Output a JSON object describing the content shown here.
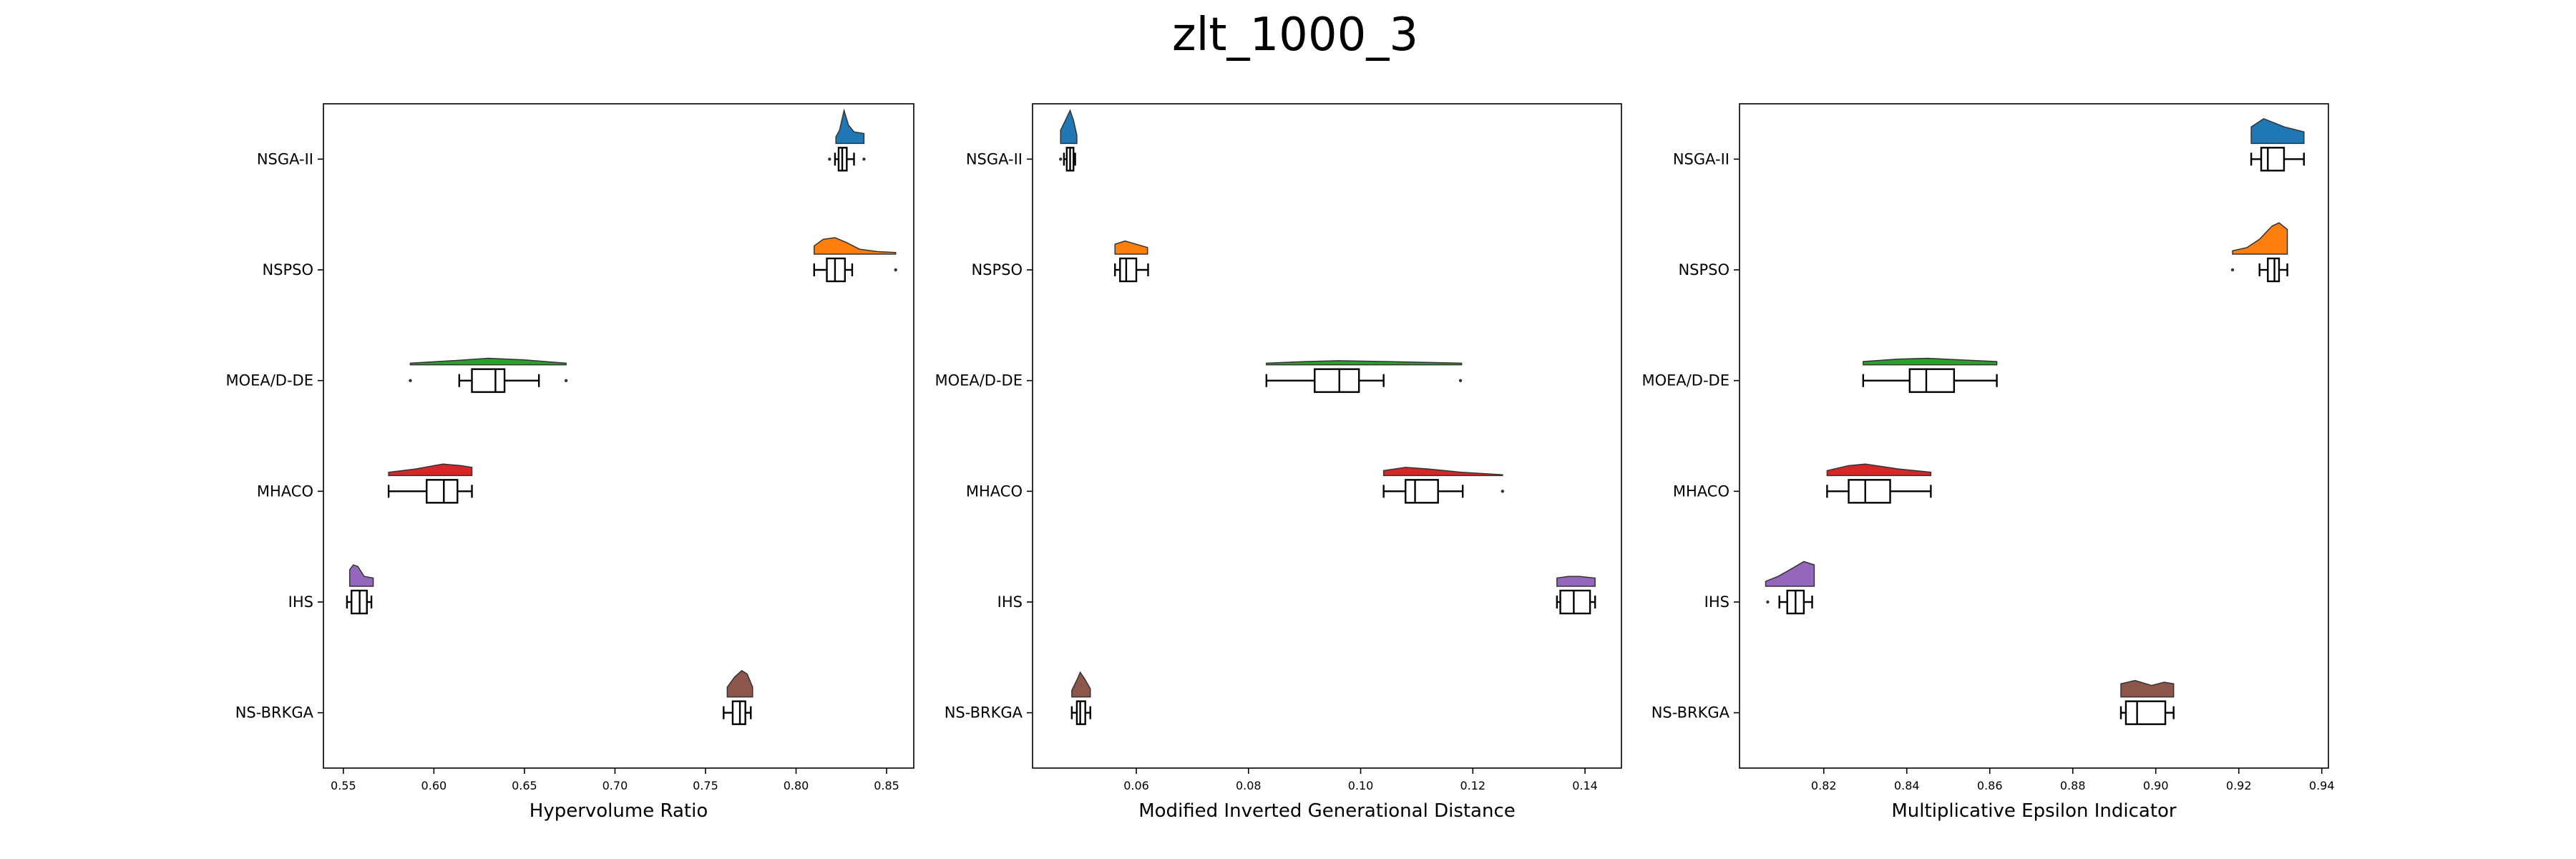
{
  "title": "zlt_1000_3",
  "chart_data": [
    {
      "type": "raincloud",
      "xlabel": "Hypervolume Ratio",
      "xlim": [
        0.539,
        0.865
      ],
      "xticks": [
        0.55,
        {
          "value": 0.6,
          "label": "0.60"
        },
        0.65,
        {
          "value": 0.7,
          "label": "0.70"
        },
        0.75,
        {
          "value": 0.8,
          "label": "0.80"
        },
        0.85
      ],
      "series": [
        {
          "name": "NSGA-II",
          "color": "#1f77b4",
          "whislo": 0.8215,
          "q1": 0.8235,
          "med": 0.8255,
          "q3": 0.828,
          "whishi": 0.832,
          "fliers": [
            0.8185,
            0.8375
          ],
          "kde_x": [
            0.822,
            0.824,
            0.8265,
            0.829,
            0.832,
            0.8375
          ],
          "kde_y": [
            4,
            8,
            20,
            11,
            7,
            6
          ]
        },
        {
          "name": "NSPSO",
          "color": "#ff7f0e",
          "whislo": 0.81,
          "q1": 0.817,
          "med": 0.8215,
          "q3": 0.827,
          "whishi": 0.831,
          "fliers": [
            0.855
          ],
          "kde_x": [
            0.81,
            0.815,
            0.8215,
            0.828,
            0.835,
            0.845,
            0.855
          ],
          "kde_y": [
            5,
            9,
            10,
            7,
            3,
            1.5,
            1
          ]
        },
        {
          "name": "MOEA/D-DE",
          "color": "#2ca02c",
          "whislo": 0.614,
          "q1": 0.621,
          "med": 0.634,
          "q3": 0.639,
          "whishi": 0.658,
          "fliers": [
            0.587,
            0.673
          ],
          "kde_x": [
            0.587,
            0.61,
            0.63,
            0.65,
            0.673
          ],
          "kde_y": [
            1,
            2.5,
            4,
            3,
            1
          ]
        },
        {
          "name": "MHACO",
          "color": "#d62728",
          "whislo": 0.575,
          "q1": 0.596,
          "med": 0.6055,
          "q3": 0.613,
          "whishi": 0.621,
          "fliers": [],
          "kde_x": [
            0.575,
            0.59,
            0.605,
            0.615,
            0.621
          ],
          "kde_y": [
            2,
            4,
            7,
            6,
            5
          ]
        },
        {
          "name": "IHS",
          "color": "#9467bd",
          "whislo": 0.552,
          "q1": 0.5545,
          "med": 0.559,
          "q3": 0.563,
          "whishi": 0.5655,
          "fliers": [],
          "kde_x": [
            0.5535,
            0.5555,
            0.558,
            0.5615,
            0.5665
          ],
          "kde_y": [
            10,
            13,
            12,
            6,
            5
          ]
        },
        {
          "name": "NS-BRKGA",
          "color": "#8c564b",
          "whislo": 0.76,
          "q1": 0.765,
          "med": 0.769,
          "q3": 0.772,
          "whishi": 0.775,
          "fliers": [],
          "kde_x": [
            0.762,
            0.766,
            0.77,
            0.773,
            0.776
          ],
          "kde_y": [
            6,
            12,
            16,
            14,
            6
          ]
        }
      ]
    },
    {
      "type": "raincloud",
      "xlabel": "Modified Inverted Generational Distance",
      "xlim": [
        0.0415,
        0.1465
      ],
      "xticks": [
        0.06,
        0.08,
        {
          "value": 0.1,
          "label": "0.10"
        },
        0.12,
        0.14
      ],
      "series": [
        {
          "name": "NSGA-II",
          "color": "#1f77b4",
          "whislo": 0.0471,
          "q1": 0.0476,
          "med": 0.0482,
          "q3": 0.0488,
          "whishi": 0.0491,
          "fliers": [
            0.0465
          ],
          "kde_x": [
            0.0465,
            0.0475,
            0.0482,
            0.0488,
            0.0494
          ],
          "kde_y": [
            8,
            15,
            20,
            14,
            5
          ]
        },
        {
          "name": "NSPSO",
          "color": "#ff7f0e",
          "whislo": 0.0562,
          "q1": 0.0571,
          "med": 0.0582,
          "q3": 0.06,
          "whishi": 0.0621,
          "fliers": [],
          "kde_x": [
            0.0562,
            0.058,
            0.06,
            0.062
          ],
          "kde_y": [
            6,
            8,
            6,
            4
          ]
        },
        {
          "name": "MOEA/D-DE",
          "color": "#2ca02c",
          "whislo": 0.0832,
          "q1": 0.0918,
          "med": 0.0962,
          "q3": 0.0997,
          "whishi": 0.1041,
          "fliers": [
            0.1178
          ],
          "kde_x": [
            0.0832,
            0.09,
            0.096,
            0.105,
            0.118
          ],
          "kde_y": [
            1,
            2,
            2.5,
            2,
            1
          ]
        },
        {
          "name": "MHACO",
          "color": "#d62728",
          "whislo": 0.1041,
          "q1": 0.108,
          "med": 0.1097,
          "q3": 0.1138,
          "whishi": 0.1182,
          "fliers": [
            0.1253
          ],
          "kde_x": [
            0.1041,
            0.108,
            0.112,
            0.118,
            0.1253
          ],
          "kde_y": [
            3,
            5,
            4,
            2,
            0.5
          ]
        },
        {
          "name": "IHS",
          "color": "#9467bd",
          "whislo": 0.135,
          "q1": 0.1356,
          "med": 0.138,
          "q3": 0.1409,
          "whishi": 0.1418,
          "fliers": [],
          "kde_x": [
            0.135,
            0.137,
            0.139,
            0.1418
          ],
          "kde_y": [
            5,
            6,
            6,
            5
          ]
        },
        {
          "name": "NS-BRKGA",
          "color": "#8c564b",
          "whislo": 0.0485,
          "q1": 0.0494,
          "med": 0.05,
          "q3": 0.0509,
          "whishi": 0.0518,
          "fliers": [],
          "kde_x": [
            0.0485,
            0.0495,
            0.05,
            0.0508,
            0.0518
          ],
          "kde_y": [
            4,
            11,
            15,
            11,
            5
          ]
        }
      ]
    },
    {
      "type": "raincloud",
      "xlabel": "Multiplicative Epsilon Indicator",
      "xlim": [
        0.7997,
        0.9416
      ],
      "xticks": [
        0.82,
        0.84,
        0.86,
        0.88,
        {
          "value": 0.9,
          "label": "0.90"
        },
        0.92,
        0.94
      ],
      "series": [
        {
          "name": "NSGA-II",
          "color": "#1f77b4",
          "whislo": 0.923,
          "q1": 0.9254,
          "med": 0.927,
          "q3": 0.9309,
          "whishi": 0.9357,
          "fliers": [],
          "kde_x": [
            0.923,
            0.926,
            0.928,
            0.931,
            0.9357
          ],
          "kde_y": [
            10,
            15,
            13,
            10,
            7
          ]
        },
        {
          "name": "NSPSO",
          "color": "#ff7f0e",
          "whislo": 0.925,
          "q1": 0.927,
          "med": 0.9286,
          "q3": 0.9297,
          "whishi": 0.9317,
          "fliers": [
            0.9185
          ],
          "kde_x": [
            0.9185,
            0.922,
            0.925,
            0.928,
            0.9297,
            0.9317
          ],
          "kde_y": [
            2,
            4,
            9,
            17,
            19,
            15
          ]
        },
        {
          "name": "MOEA/D-DE",
          "color": "#2ca02c",
          "whislo": 0.8295,
          "q1": 0.8407,
          "med": 0.8447,
          "q3": 0.8514,
          "whishi": 0.8617,
          "fliers": [],
          "kde_x": [
            0.8295,
            0.838,
            0.845,
            0.853,
            0.8617
          ],
          "kde_y": [
            2,
            3.5,
            4,
            3,
            2
          ]
        },
        {
          "name": "MHACO",
          "color": "#d62728",
          "whislo": 0.8208,
          "q1": 0.826,
          "med": 0.83,
          "q3": 0.836,
          "whishi": 0.8458,
          "fliers": [],
          "kde_x": [
            0.8208,
            0.826,
            0.83,
            0.838,
            0.8458
          ],
          "kde_y": [
            3,
            6,
            7,
            4,
            2
          ]
        },
        {
          "name": "IHS",
          "color": "#9467bd",
          "whislo": 0.8093,
          "q1": 0.8112,
          "med": 0.8132,
          "q3": 0.8152,
          "whishi": 0.8172,
          "fliers": [
            0.8065
          ],
          "kde_x": [
            0.806,
            0.809,
            0.8125,
            0.8152,
            0.8177
          ],
          "kde_y": [
            3,
            6,
            11,
            15,
            13
          ]
        },
        {
          "name": "NS-BRKGA",
          "color": "#8c564b",
          "whislo": 0.8916,
          "q1": 0.8928,
          "med": 0.8955,
          "q3": 0.9023,
          "whishi": 0.9043,
          "fliers": [],
          "kde_x": [
            0.8916,
            0.895,
            0.899,
            0.902,
            0.9043
          ],
          "kde_y": [
            8,
            10,
            7,
            9,
            8
          ]
        }
      ]
    }
  ]
}
